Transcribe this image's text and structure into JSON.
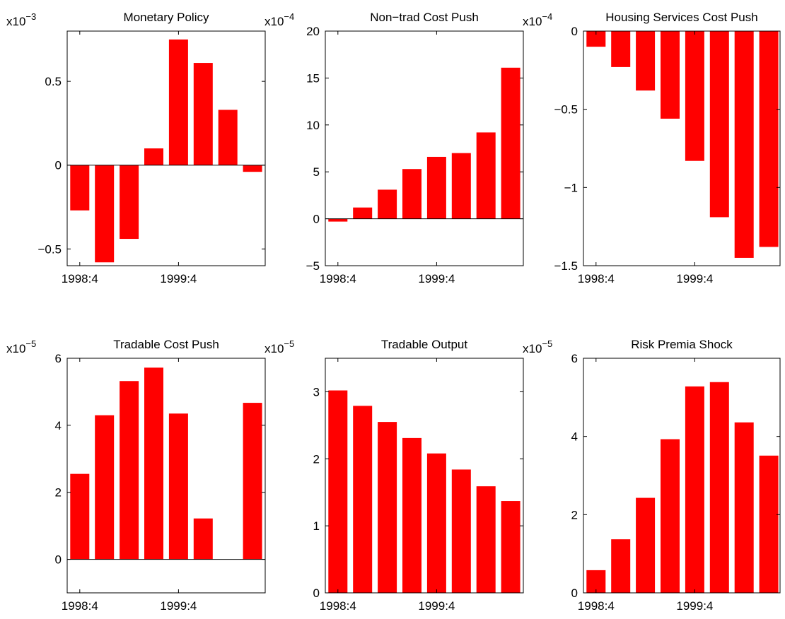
{
  "colors": {
    "bar": "#ff0000",
    "axis": "#000000",
    "background": "#ffffff"
  },
  "chart_data": [
    {
      "type": "bar",
      "title": "Monetary Policy",
      "multiplier_base": "x10",
      "multiplier_exp": "−3",
      "x": [
        "1998:4",
        "1999:1",
        "1999:2",
        "1999:3",
        "1999:4",
        "2000:1",
        "2000:2",
        "2000:3"
      ],
      "xtick_labels": [
        "1998:4",
        "1999:4"
      ],
      "values": [
        -0.27,
        -0.58,
        -0.44,
        0.1,
        0.75,
        0.61,
        0.33,
        -0.04
      ],
      "ylim": [
        -0.6,
        0.8
      ],
      "yticks": [
        -0.5,
        0,
        0.5
      ],
      "ytick_labels": [
        "−0.5",
        "0",
        "0.5"
      ],
      "grid": false,
      "zero_line": true
    },
    {
      "type": "bar",
      "title": "Non−trad Cost Push",
      "multiplier_base": "x10",
      "multiplier_exp": "−4",
      "x": [
        "1998:4",
        "1999:1",
        "1999:2",
        "1999:3",
        "1999:4",
        "2000:1",
        "2000:2",
        "2000:3"
      ],
      "xtick_labels": [
        "1998:4",
        "1999:4"
      ],
      "values": [
        -0.3,
        1.2,
        3.1,
        5.3,
        6.6,
        7.0,
        9.2,
        16.1
      ],
      "ylim": [
        -5,
        20
      ],
      "yticks": [
        -5,
        0,
        5,
        10,
        15,
        20
      ],
      "ytick_labels": [
        "−5",
        "0",
        "5",
        "10",
        "15",
        "20"
      ],
      "grid": false,
      "zero_line": true
    },
    {
      "type": "bar",
      "title": "Housing Services Cost Push",
      "multiplier_base": "x10",
      "multiplier_exp": "−4",
      "x": [
        "1998:4",
        "1999:1",
        "1999:2",
        "1999:3",
        "1999:4",
        "2000:1",
        "2000:2",
        "2000:3"
      ],
      "xtick_labels": [
        "1998:4",
        "1999:4"
      ],
      "values": [
        -0.1,
        -0.23,
        -0.38,
        -0.56,
        -0.83,
        -1.19,
        -1.45,
        -1.38
      ],
      "ylim": [
        -1.5,
        0
      ],
      "yticks": [
        -1.5,
        -1,
        -0.5,
        0
      ],
      "ytick_labels": [
        "−1.5",
        "−1",
        "−0.5",
        "0"
      ],
      "grid": false,
      "zero_line": true
    },
    {
      "type": "bar",
      "title": "Tradable Cost Push",
      "multiplier_base": "x10",
      "multiplier_exp": "−5",
      "x": [
        "1998:4",
        "1999:1",
        "1999:2",
        "1999:3",
        "1999:4",
        "2000:1",
        "2000:2",
        "2000:3"
      ],
      "xtick_labels": [
        "1998:4",
        "1999:4"
      ],
      "values": [
        2.55,
        4.3,
        5.32,
        5.72,
        4.35,
        1.22,
        0,
        4.67
      ],
      "ylim": [
        -1,
        6
      ],
      "yticks": [
        0,
        2,
        4,
        6
      ],
      "ytick_labels": [
        "0",
        "2",
        "4",
        "6"
      ],
      "grid": false,
      "zero_line": true
    },
    {
      "type": "bar",
      "title": "Tradable Output",
      "multiplier_base": "x10",
      "multiplier_exp": "−5",
      "x": [
        "1998:4",
        "1999:1",
        "1999:2",
        "1999:3",
        "1999:4",
        "2000:1",
        "2000:2",
        "2000:3"
      ],
      "xtick_labels": [
        "1998:4",
        "1999:4"
      ],
      "values": [
        3.02,
        2.79,
        2.55,
        2.31,
        2.08,
        1.84,
        1.59,
        1.37
      ],
      "ylim": [
        0,
        3.5
      ],
      "yticks": [
        0,
        1,
        2,
        3
      ],
      "ytick_labels": [
        "0",
        "1",
        "2",
        "3"
      ],
      "grid": false,
      "zero_line": false
    },
    {
      "type": "bar",
      "title": "Risk Premia Shock",
      "multiplier_base": "x10",
      "multiplier_exp": "−5",
      "x": [
        "1998:4",
        "1999:1",
        "1999:2",
        "1999:3",
        "1999:4",
        "2000:1",
        "2000:2",
        "2000:3"
      ],
      "xtick_labels": [
        "1998:4",
        "1999:4"
      ],
      "values": [
        0.58,
        1.37,
        2.43,
        3.93,
        5.28,
        5.39,
        4.36,
        3.51
      ],
      "ylim": [
        0,
        6
      ],
      "yticks": [
        0,
        2,
        4,
        6
      ],
      "ytick_labels": [
        "0",
        "2",
        "4",
        "6"
      ],
      "grid": false,
      "zero_line": false
    }
  ]
}
